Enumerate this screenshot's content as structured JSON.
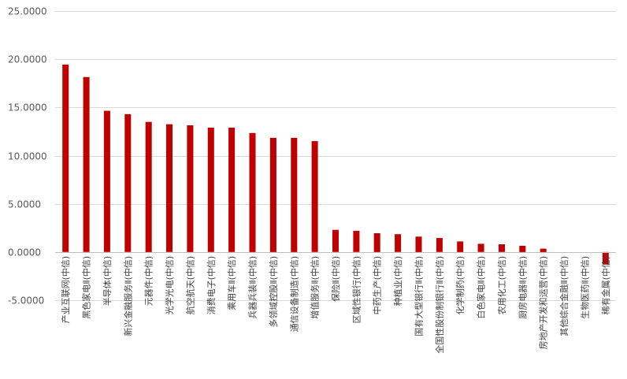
{
  "chart_data": {
    "type": "bar",
    "title": "",
    "xlabel": "",
    "ylabel": "",
    "ylim": [
      -5,
      25
    ],
    "yticks": [
      25,
      20,
      15,
      10,
      5,
      0,
      -5
    ],
    "ytick_labels": [
      "25.0000",
      "20.0000",
      "15.0000",
      "10.0000",
      "5.0000",
      "0.0000",
      "-5.0000"
    ],
    "grid": true,
    "legend": "none",
    "bar_color": "#c00000",
    "categories": [
      "产业互联网(中信)",
      "黑色家电Ⅱ(中信)",
      "半导体(中信)",
      "新兴金融服务Ⅱ(中信)",
      "元器件(中信)",
      "光学光电(中信)",
      "航空航天(中信)",
      "消费电子(中信)",
      "乘用车Ⅱ(中信)",
      "兵器兵装Ⅱ(中信)",
      "多领域控股Ⅱ(中信)",
      "通信设备制造(中信)",
      "增值服务Ⅱ(中信)",
      "保险Ⅱ(中信)",
      "区域性银行(中信)",
      "中药生产(中信)",
      "种植业(中信)",
      "国有大型银行Ⅱ(中信)",
      "全国性股份制银行Ⅱ(中信)",
      "化学制药(中信)",
      "白色家电Ⅱ(中信)",
      "农用化工(中信)",
      "厨房电器Ⅱ(中信)",
      "房地产开发和运营(中信)",
      "其他综合金融Ⅱ(中信)",
      "生物医药Ⅱ(中信)",
      "稀有金属(中信)"
    ],
    "values": [
      19.45,
      18.15,
      14.65,
      14.3,
      13.5,
      13.25,
      13.15,
      12.9,
      12.9,
      12.35,
      11.85,
      11.85,
      11.5,
      2.3,
      2.2,
      1.95,
      1.85,
      1.6,
      1.45,
      1.1,
      0.85,
      0.8,
      0.65,
      0.35,
      0.0,
      0.0,
      -1.3
    ]
  }
}
